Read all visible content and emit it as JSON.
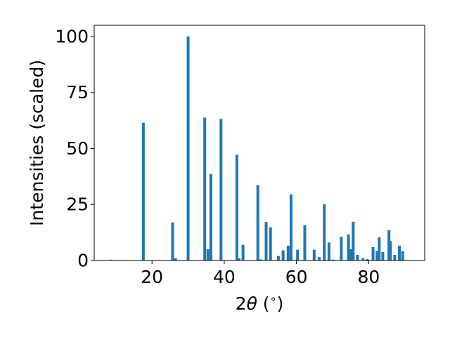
{
  "chart_data": {
    "type": "bar",
    "xlabel_parts": [
      "2",
      "θ",
      " (",
      "∘",
      ")"
    ],
    "ylabel": "Intensities (scaled)",
    "xlim": [
      4,
      95.5
    ],
    "ylim": [
      0,
      105
    ],
    "x_ticks": [
      20,
      40,
      60,
      80
    ],
    "y_ticks": [
      0,
      25,
      50,
      75,
      100
    ],
    "grid": false,
    "bar_color": "#1f77b4",
    "x": [
      8.5,
      17.6,
      25.7,
      26.5,
      30.0,
      34.6,
      35.5,
      36.3,
      39.1,
      43.5,
      44.1,
      45.2,
      49.3,
      50.1,
      51.6,
      52.8,
      55.0,
      56.3,
      57.7,
      58.5,
      60.3,
      62.3,
      64.9,
      66.3,
      67.7,
      69.0,
      70.2,
      72.4,
      74.4,
      75.0,
      75.7,
      76.9,
      78.4,
      79.6,
      81.2,
      82.3,
      82.9,
      83.9,
      85.6,
      86.0,
      87.2,
      88.5,
      89.4
    ],
    "values": [
      0.3,
      61.5,
      17,
      1,
      100,
      63.8,
      5,
      38.6,
      63.2,
      47.2,
      1.0,
      7,
      33.6,
      0.5,
      17.2,
      14.8,
      2,
      4.5,
      6.6,
      29.5,
      4.8,
      15.7,
      4.8,
      1.5,
      25.1,
      8,
      0.4,
      10.6,
      11.6,
      5,
      17.3,
      2.5,
      1.0,
      0.6,
      6,
      4.2,
      10.4,
      3.8,
      13.5,
      8.7,
      2.5,
      6.6,
      4.2
    ]
  }
}
